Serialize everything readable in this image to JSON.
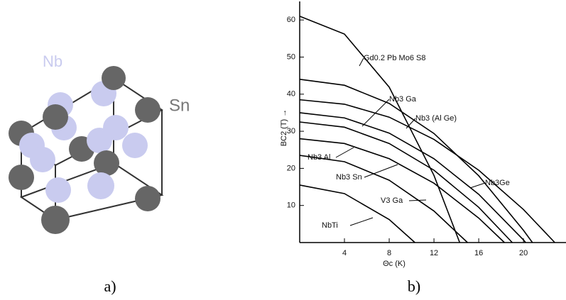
{
  "panel_a": {
    "atom_labels": [
      "Nb",
      "Sn"
    ],
    "caption": "a)"
  },
  "panel_b": {
    "caption": "b)"
  },
  "chart_data": {
    "type": "line",
    "y_label": "BC2 (T) →",
    "x_label": "Θc (K)",
    "xlim": [
      0,
      23.8
    ],
    "xticks": [
      4,
      8,
      12,
      16,
      20
    ],
    "ylim": [
      0,
      65
    ],
    "yticks": [
      10,
      20,
      30,
      40,
      50,
      60
    ],
    "series": [
      {
        "name": "Gd0.2 Pb Mo6 S8",
        "color": "#000000",
        "x": [
          0,
          4,
          8,
          12,
          14.3
        ],
        "values": [
          61,
          56.2,
          41.9,
          18.1,
          0
        ]
      },
      {
        "name": "Nb3 (Al Ge)",
        "color": "#000000",
        "x": [
          0,
          4,
          8,
          12,
          16,
          20,
          20.8
        ],
        "values": [
          44,
          42.4,
          37.5,
          29.4,
          18.0,
          3.3,
          0
        ]
      },
      {
        "name": "Nb3Ge",
        "color": "#000000",
        "x": [
          0,
          4,
          8,
          12,
          16,
          20,
          22.8
        ],
        "values": [
          38.5,
          37.3,
          33.8,
          27.8,
          19.5,
          8.9,
          0
        ]
      },
      {
        "name": "Nb3 Ga",
        "color": "#000000",
        "x": [
          0,
          4,
          8,
          12,
          16,
          20,
          20.2
        ],
        "values": [
          35,
          33.6,
          29.5,
          22.6,
          13.0,
          0.7,
          0
        ]
      },
      {
        "name": "Nb3 Al",
        "color": "#000000",
        "x": [
          0,
          4,
          8,
          12,
          16,
          19
        ],
        "values": [
          32.5,
          31.1,
          26.7,
          19.5,
          9.5,
          0
        ]
      },
      {
        "name": "Nb3 Sn",
        "color": "#000000",
        "x": [
          0,
          4,
          8,
          12,
          16,
          18.3
        ],
        "values": [
          28,
          26.7,
          22.6,
          16.0,
          6.6,
          0
        ]
      },
      {
        "name": "V3 Ga",
        "color": "#000000",
        "x": [
          0,
          4,
          8,
          12,
          15
        ],
        "values": [
          23.5,
          21.8,
          16.8,
          8.5,
          0
        ]
      },
      {
        "name": "NbTi",
        "color": "#000000",
        "x": [
          0,
          4,
          8,
          10.3
        ],
        "values": [
          15.5,
          13.2,
          6.2,
          0
        ]
      }
    ]
  }
}
